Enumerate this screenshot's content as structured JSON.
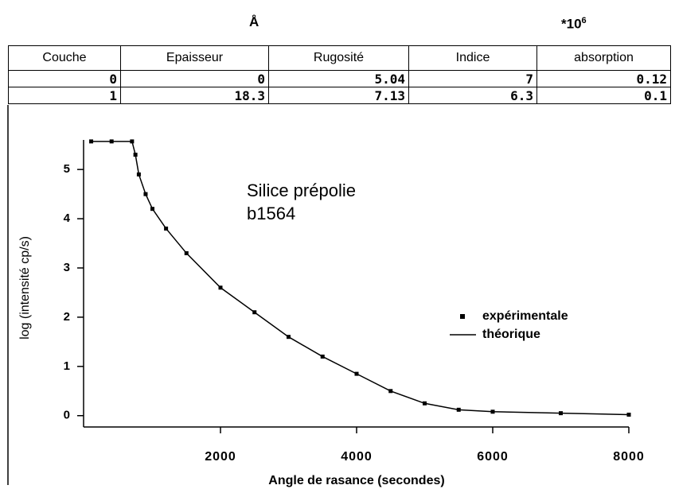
{
  "header": {
    "unit_thickness": "Å",
    "unit_index": {
      "base": "*10",
      "exponent": "6"
    }
  },
  "table": {
    "columns": [
      "Couche",
      "Epaisseur",
      "Rugosité",
      "Indice",
      "absorption"
    ],
    "rows": [
      [
        "0",
        "0",
        "5.04",
        "7",
        "0.12"
      ],
      [
        "1",
        "18.3",
        "7.13",
        "6.3",
        "0.1"
      ]
    ]
  },
  "chart_data": {
    "type": "line",
    "annotations": [
      "Silice  prépolie",
      "b1564"
    ],
    "x_label": "Angle de rasance (secondes)",
    "y_label": "log  (intensité cp/s)",
    "x": [
      100,
      400,
      700,
      750,
      800,
      900,
      1000,
      1200,
      1500,
      2000,
      2500,
      3000,
      3500,
      4000,
      4500,
      5000,
      5500,
      6000,
      7000,
      8000
    ],
    "series": [
      {
        "name": "expérimentale",
        "color": "#000000",
        "style": "marker",
        "values": [
          5.57,
          5.57,
          5.57,
          5.3,
          4.9,
          4.5,
          4.2,
          3.8,
          3.3,
          2.6,
          2.1,
          1.6,
          1.2,
          0.85,
          0.5,
          0.25,
          0.12,
          0.08,
          0.05,
          0.02
        ]
      },
      {
        "name": "théorique",
        "color": "#000000",
        "style": "line",
        "values": [
          5.57,
          5.57,
          5.57,
          5.3,
          4.9,
          4.5,
          4.2,
          3.8,
          3.3,
          2.6,
          2.1,
          1.6,
          1.2,
          0.85,
          0.5,
          0.25,
          0.12,
          0.08,
          0.05,
          0.02
        ]
      }
    ],
    "xlim": [
      0,
      8000
    ],
    "ylim": [
      -0.23,
      5.6
    ],
    "xticks": [
      2000,
      4000,
      6000,
      8000
    ],
    "yticks": [
      0,
      1,
      2,
      3,
      4,
      5
    ]
  }
}
